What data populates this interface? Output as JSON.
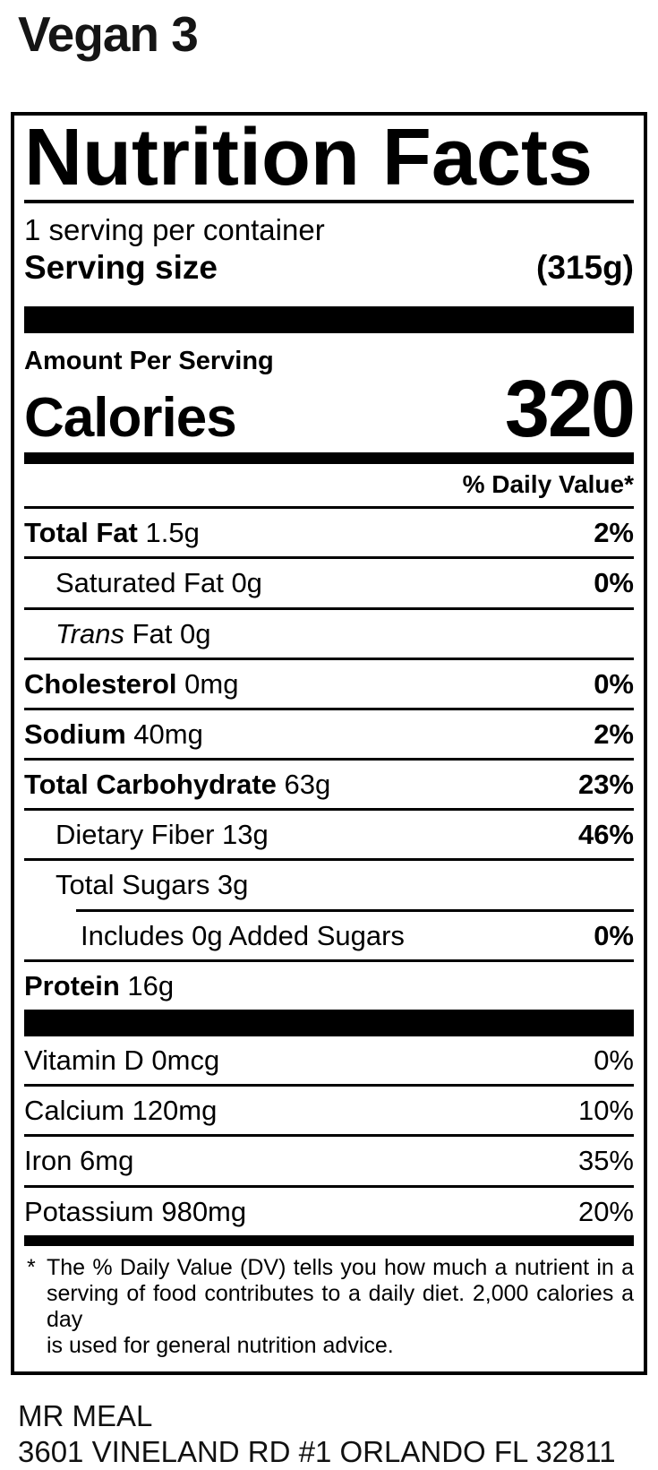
{
  "page": {
    "title": "Vegan 3"
  },
  "label": {
    "title": "Nutrition Facts",
    "servings_per_container": "1 serving per container",
    "serving_size_label": "Serving size",
    "serving_size_value": "(315g)",
    "amount_per_serving": "Amount Per Serving",
    "calories_label": "Calories",
    "calories_value": "320",
    "daily_value_header": "% Daily Value*",
    "nutrients": [
      {
        "bold": "Total Fat",
        "rest": " 1.5g",
        "pct": "2%"
      },
      {
        "rest": "Saturated Fat 0g",
        "pct": "0%"
      },
      {
        "italic": "Trans",
        "rest": " Fat 0g",
        "pct": ""
      },
      {
        "bold": "Cholesterol",
        "rest": " 0mg",
        "pct": "0%"
      },
      {
        "bold": "Sodium",
        "rest": " 40mg",
        "pct": "2%"
      },
      {
        "bold": "Total Carbohydrate",
        "rest": " 63g",
        "pct": "23%"
      },
      {
        "rest": "Dietary Fiber 13g",
        "pct": "46%"
      },
      {
        "rest": "Total Sugars 3g",
        "pct": ""
      },
      {
        "rest": "Includes 0g Added Sugars",
        "pct": "0%"
      },
      {
        "bold": "Protein",
        "rest": " 16g",
        "pct": ""
      }
    ],
    "vitamins": [
      {
        "name": "Vitamin D 0mcg",
        "pct": "0%"
      },
      {
        "name": "Calcium 120mg",
        "pct": "10%"
      },
      {
        "name": "Iron 6mg",
        "pct": "35%"
      },
      {
        "name": "Potassium 980mg",
        "pct": "20%"
      }
    ],
    "footnote": {
      "asterisk": "*",
      "lines": [
        "The % Daily Value (DV) tells you how much a nutrient in a",
        "serving of food contributes to a daily diet. 2,000 calories a day",
        "is used for general nutrition advice."
      ]
    },
    "colors": {
      "ink": "#000000",
      "background": "#ffffff"
    }
  },
  "footer": {
    "brand": "MR MEAL",
    "address": "3601 VINELAND RD #1 ORLANDO FL 32811"
  }
}
